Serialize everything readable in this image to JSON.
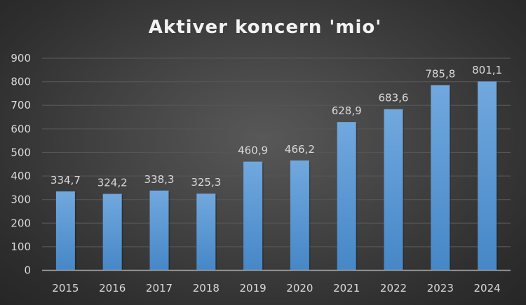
{
  "chart_data": {
    "type": "bar",
    "title": "Aktiver koncern 'mio'",
    "categories": [
      "2015",
      "2016",
      "2017",
      "2018",
      "2019",
      "2020",
      "2021",
      "2022",
      "2023",
      "2024"
    ],
    "values": [
      334.7,
      324.2,
      338.3,
      325.3,
      460.9,
      466.2,
      628.9,
      683.6,
      785.8,
      801.1
    ],
    "data_labels": [
      "334,7",
      "324,2",
      "338,3",
      "325,3",
      "460,9",
      "466,2",
      "628,9",
      "683,6",
      "785,8",
      "801,1"
    ],
    "xlabel": "",
    "ylabel": "",
    "ylim": [
      0,
      900
    ],
    "yticks": [
      "0",
      "100",
      "200",
      "300",
      "400",
      "500",
      "600",
      "700",
      "800",
      "900"
    ],
    "grid": true,
    "legend": "none",
    "colors": {
      "bar_top": "#71a8de",
      "bar_bottom": "#4687c7",
      "grid": "#555555",
      "axis": "#a6a6a6",
      "text": "#d9d9d9"
    }
  }
}
